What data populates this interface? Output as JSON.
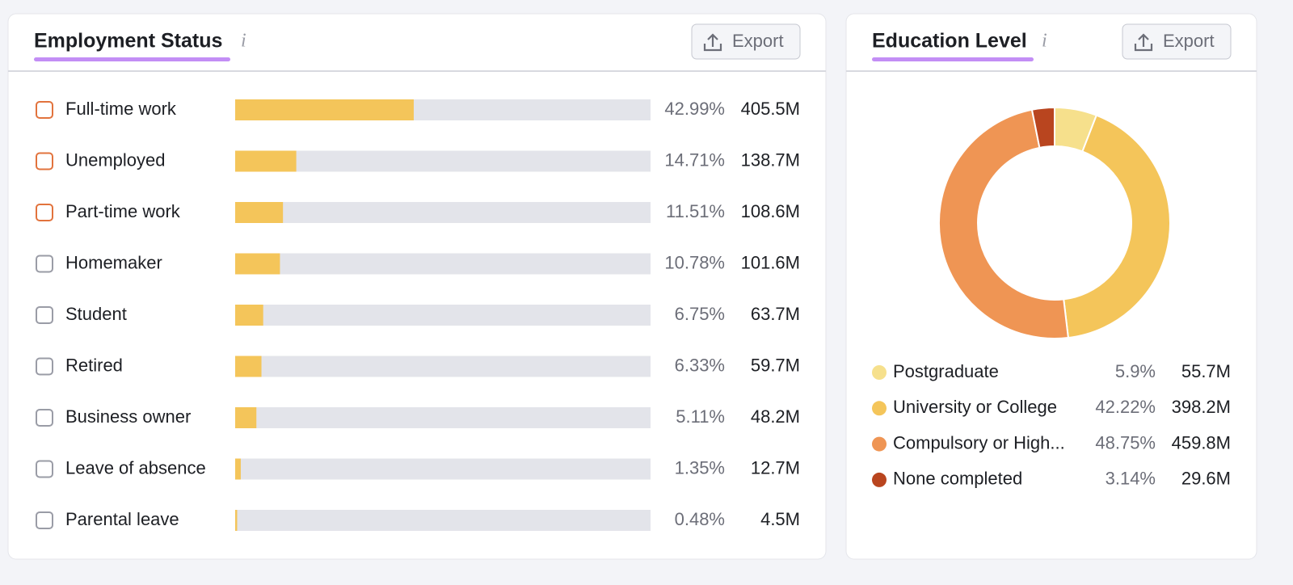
{
  "chart_data": [
    {
      "type": "hbar",
      "title": "Employment Status",
      "info": "i",
      "button": "Export",
      "categories": [
        "Full-time work",
        "Unemployed",
        "Part-time work",
        "Homemaker",
        "Student",
        "Retired",
        "Business owner",
        "Leave of absence",
        "Parental leave"
      ],
      "values": [
        42.99,
        14.71,
        11.51,
        10.78,
        6.75,
        6.33,
        5.11,
        1.35,
        0.48
      ],
      "value_labels": [
        "42.99%",
        "14.71%",
        "11.51%",
        "10.78%",
        "6.75%",
        "6.33%",
        "5.11%",
        "1.35%",
        "0.48%"
      ],
      "counts": [
        405500000,
        138700000,
        108600000,
        101600000,
        63700000,
        59700000,
        48200000,
        12700000,
        4500000
      ],
      "count_labels": [
        "405.5M",
        "138.7M",
        "108.6M",
        "101.6M",
        "63.7M",
        "59.7M",
        "48.2M",
        "12.7M",
        "4.5M"
      ],
      "xlim": [
        0,
        100
      ],
      "color": "#f4c55a",
      "track_color": "#e3e4ea"
    },
    {
      "type": "donut",
      "title": "Education Level",
      "info": "i",
      "button": "Export",
      "categories": [
        "Postgraduate",
        "University or College",
        "Compulsory or High...",
        "None completed"
      ],
      "values": [
        5.9,
        42.22,
        48.75,
        3.14
      ],
      "value_labels": [
        "5.9%",
        "42.22%",
        "48.75%",
        "3.14%"
      ],
      "counts": [
        55700000,
        398200000,
        459800000,
        29600000
      ],
      "count_labels": [
        "55.7M",
        "398.2M",
        "459.8M",
        "29.6M"
      ],
      "colors": [
        "#f6e08c",
        "#f4c55a",
        "#ef9554",
        "#b9451f"
      ]
    }
  ]
}
